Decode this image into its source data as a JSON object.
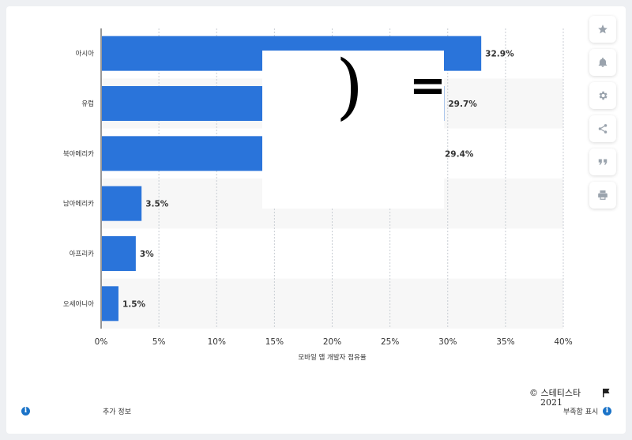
{
  "chart_data": {
    "type": "bar",
    "orientation": "horizontal",
    "categories": [
      "아시아",
      "유럽",
      "북아메리카",
      "남아메리카",
      "아프리카",
      "오세아니아"
    ],
    "values": [
      32.9,
      29.7,
      29.4,
      3.5,
      3,
      1.5
    ],
    "value_labels": [
      "32.9%",
      "29.7%",
      "29.4%",
      "3.5%",
      "3%",
      "1.5%"
    ],
    "xlabel": "모바일 앱 개발자 점유율",
    "xlim": [
      0,
      40
    ],
    "xticks": [
      "0%",
      "5%",
      "10%",
      "15%",
      "20%",
      "25%",
      "30%",
      "35%",
      "40%"
    ],
    "grid": true,
    "bar_color": "#2a74da",
    "stripe_color": "#f7f7f7"
  },
  "overlay": {
    "paren": ")",
    "equals": "="
  },
  "footer": {
    "more_info": "추가 정보",
    "copyright": "© 스테티스타",
    "year": "2021",
    "show_source": "부족함 표시"
  },
  "sidebar": {
    "icons": [
      "star-icon",
      "bell-icon",
      "gear-icon",
      "share-icon",
      "quote-icon",
      "print-icon"
    ]
  }
}
